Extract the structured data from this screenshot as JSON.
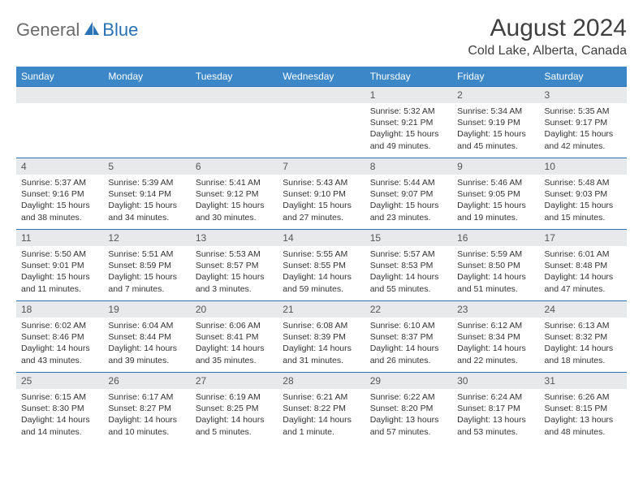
{
  "brand": {
    "part1": "General",
    "part2": "Blue"
  },
  "title": "August 2024",
  "location": "Cold Lake, Alberta, Canada",
  "colors": {
    "header_bg": "#3b87c8",
    "daynum_bg": "#e8e9eb",
    "border": "#2a72b5",
    "brand_grey": "#6b6b6b",
    "brand_blue": "#2a72b5"
  },
  "weekdays": [
    "Sunday",
    "Monday",
    "Tuesday",
    "Wednesday",
    "Thursday",
    "Friday",
    "Saturday"
  ],
  "weeks": [
    [
      null,
      null,
      null,
      null,
      {
        "n": "1",
        "sr": "Sunrise: 5:32 AM",
        "ss": "Sunset: 9:21 PM",
        "dl": "Daylight: 15 hours and 49 minutes."
      },
      {
        "n": "2",
        "sr": "Sunrise: 5:34 AM",
        "ss": "Sunset: 9:19 PM",
        "dl": "Daylight: 15 hours and 45 minutes."
      },
      {
        "n": "3",
        "sr": "Sunrise: 5:35 AM",
        "ss": "Sunset: 9:17 PM",
        "dl": "Daylight: 15 hours and 42 minutes."
      }
    ],
    [
      {
        "n": "4",
        "sr": "Sunrise: 5:37 AM",
        "ss": "Sunset: 9:16 PM",
        "dl": "Daylight: 15 hours and 38 minutes."
      },
      {
        "n": "5",
        "sr": "Sunrise: 5:39 AM",
        "ss": "Sunset: 9:14 PM",
        "dl": "Daylight: 15 hours and 34 minutes."
      },
      {
        "n": "6",
        "sr": "Sunrise: 5:41 AM",
        "ss": "Sunset: 9:12 PM",
        "dl": "Daylight: 15 hours and 30 minutes."
      },
      {
        "n": "7",
        "sr": "Sunrise: 5:43 AM",
        "ss": "Sunset: 9:10 PM",
        "dl": "Daylight: 15 hours and 27 minutes."
      },
      {
        "n": "8",
        "sr": "Sunrise: 5:44 AM",
        "ss": "Sunset: 9:07 PM",
        "dl": "Daylight: 15 hours and 23 minutes."
      },
      {
        "n": "9",
        "sr": "Sunrise: 5:46 AM",
        "ss": "Sunset: 9:05 PM",
        "dl": "Daylight: 15 hours and 19 minutes."
      },
      {
        "n": "10",
        "sr": "Sunrise: 5:48 AM",
        "ss": "Sunset: 9:03 PM",
        "dl": "Daylight: 15 hours and 15 minutes."
      }
    ],
    [
      {
        "n": "11",
        "sr": "Sunrise: 5:50 AM",
        "ss": "Sunset: 9:01 PM",
        "dl": "Daylight: 15 hours and 11 minutes."
      },
      {
        "n": "12",
        "sr": "Sunrise: 5:51 AM",
        "ss": "Sunset: 8:59 PM",
        "dl": "Daylight: 15 hours and 7 minutes."
      },
      {
        "n": "13",
        "sr": "Sunrise: 5:53 AM",
        "ss": "Sunset: 8:57 PM",
        "dl": "Daylight: 15 hours and 3 minutes."
      },
      {
        "n": "14",
        "sr": "Sunrise: 5:55 AM",
        "ss": "Sunset: 8:55 PM",
        "dl": "Daylight: 14 hours and 59 minutes."
      },
      {
        "n": "15",
        "sr": "Sunrise: 5:57 AM",
        "ss": "Sunset: 8:53 PM",
        "dl": "Daylight: 14 hours and 55 minutes."
      },
      {
        "n": "16",
        "sr": "Sunrise: 5:59 AM",
        "ss": "Sunset: 8:50 PM",
        "dl": "Daylight: 14 hours and 51 minutes."
      },
      {
        "n": "17",
        "sr": "Sunrise: 6:01 AM",
        "ss": "Sunset: 8:48 PM",
        "dl": "Daylight: 14 hours and 47 minutes."
      }
    ],
    [
      {
        "n": "18",
        "sr": "Sunrise: 6:02 AM",
        "ss": "Sunset: 8:46 PM",
        "dl": "Daylight: 14 hours and 43 minutes."
      },
      {
        "n": "19",
        "sr": "Sunrise: 6:04 AM",
        "ss": "Sunset: 8:44 PM",
        "dl": "Daylight: 14 hours and 39 minutes."
      },
      {
        "n": "20",
        "sr": "Sunrise: 6:06 AM",
        "ss": "Sunset: 8:41 PM",
        "dl": "Daylight: 14 hours and 35 minutes."
      },
      {
        "n": "21",
        "sr": "Sunrise: 6:08 AM",
        "ss": "Sunset: 8:39 PM",
        "dl": "Daylight: 14 hours and 31 minutes."
      },
      {
        "n": "22",
        "sr": "Sunrise: 6:10 AM",
        "ss": "Sunset: 8:37 PM",
        "dl": "Daylight: 14 hours and 26 minutes."
      },
      {
        "n": "23",
        "sr": "Sunrise: 6:12 AM",
        "ss": "Sunset: 8:34 PM",
        "dl": "Daylight: 14 hours and 22 minutes."
      },
      {
        "n": "24",
        "sr": "Sunrise: 6:13 AM",
        "ss": "Sunset: 8:32 PM",
        "dl": "Daylight: 14 hours and 18 minutes."
      }
    ],
    [
      {
        "n": "25",
        "sr": "Sunrise: 6:15 AM",
        "ss": "Sunset: 8:30 PM",
        "dl": "Daylight: 14 hours and 14 minutes."
      },
      {
        "n": "26",
        "sr": "Sunrise: 6:17 AM",
        "ss": "Sunset: 8:27 PM",
        "dl": "Daylight: 14 hours and 10 minutes."
      },
      {
        "n": "27",
        "sr": "Sunrise: 6:19 AM",
        "ss": "Sunset: 8:25 PM",
        "dl": "Daylight: 14 hours and 5 minutes."
      },
      {
        "n": "28",
        "sr": "Sunrise: 6:21 AM",
        "ss": "Sunset: 8:22 PM",
        "dl": "Daylight: 14 hours and 1 minute."
      },
      {
        "n": "29",
        "sr": "Sunrise: 6:22 AM",
        "ss": "Sunset: 8:20 PM",
        "dl": "Daylight: 13 hours and 57 minutes."
      },
      {
        "n": "30",
        "sr": "Sunrise: 6:24 AM",
        "ss": "Sunset: 8:17 PM",
        "dl": "Daylight: 13 hours and 53 minutes."
      },
      {
        "n": "31",
        "sr": "Sunrise: 6:26 AM",
        "ss": "Sunset: 8:15 PM",
        "dl": "Daylight: 13 hours and 48 minutes."
      }
    ]
  ]
}
